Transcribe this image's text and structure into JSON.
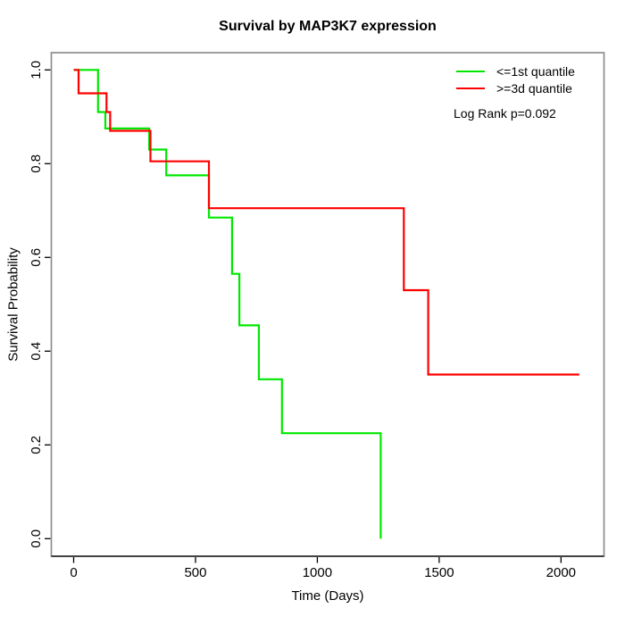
{
  "chart_data": {
    "type": "line",
    "subtype": "kaplan-meier-step-curves",
    "title": "Survival by MAP3K7 expression",
    "xlabel": "Time (Days)",
    "ylabel": "Survival Probability",
    "xlim": [
      0,
      2100
    ],
    "ylim": [
      0.0,
      1.0
    ],
    "x_ticks": [
      0,
      500,
      1000,
      1500,
      2000
    ],
    "y_ticks": [
      0.0,
      0.2,
      0.4,
      0.6,
      0.8,
      1.0
    ],
    "y_tick_labels": [
      "0.0",
      "0.2",
      "0.4",
      "0.6",
      "0.8",
      "1.0"
    ],
    "grid": false,
    "legend_position": "top-right",
    "annotation": "Log Rank p=0.092",
    "series": [
      {
        "name": "<=1st quantile",
        "color": "#00e800",
        "steps": [
          [
            0,
            1.0
          ],
          [
            100,
            0.91
          ],
          [
            130,
            0.875
          ],
          [
            310,
            0.83
          ],
          [
            380,
            0.775
          ],
          [
            555,
            0.685
          ],
          [
            650,
            0.565
          ],
          [
            680,
            0.455
          ],
          [
            760,
            0.34
          ],
          [
            855,
            0.225
          ],
          [
            1260,
            0.0
          ]
        ],
        "end_time": 1260
      },
      {
        "name": ">=3d quantile",
        "color": "#ff0000",
        "steps": [
          [
            0,
            1.0
          ],
          [
            20,
            0.95
          ],
          [
            135,
            0.91
          ],
          [
            150,
            0.87
          ],
          [
            315,
            0.805
          ],
          [
            555,
            0.705
          ],
          [
            1355,
            0.53
          ],
          [
            1455,
            0.35
          ]
        ],
        "end_time": 2075
      }
    ]
  },
  "colors": {
    "box": "#8e8e8e",
    "axis": "#000000",
    "text": "#000000",
    "background": "#ffffff"
  }
}
